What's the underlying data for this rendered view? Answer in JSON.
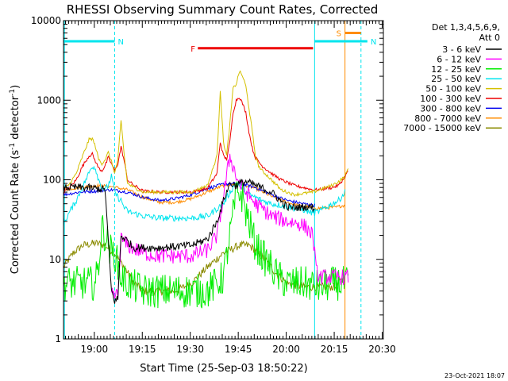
{
  "chart_data": {
    "type": "line",
    "title": "RHESSI Observing Summary Count Rates, Corrected",
    "xlabel": "Start Time (25-Sep-03 18:50:22)",
    "ylabel": "Corrected Count Rate (s",
    "ylabel_sup1": "-1",
    "ylabel_mid": " detector",
    "ylabel_sup2": "-1",
    "ylabel_end": ")",
    "yscale": "log",
    "ylim": [
      1,
      10000
    ],
    "xlim_min": [
      0,
      100
    ],
    "x_unit": "minutes since 18:50:22",
    "x_tick_labels": [
      {
        "label": "19:00",
        "t": 9.63
      },
      {
        "label": "19:15",
        "t": 24.63
      },
      {
        "label": "19:30",
        "t": 39.63
      },
      {
        "label": "19:45",
        "t": 54.63
      },
      {
        "label": "20:00",
        "t": 69.63
      },
      {
        "label": "20:15",
        "t": 84.63
      },
      {
        "label": "20:30",
        "t": 99.63
      }
    ],
    "y_tick_labels": [
      "1",
      "10",
      "100",
      "1000",
      "10000"
    ],
    "legend_header": [
      "Det 1,3,4,5,6,9,",
      "Att 0"
    ],
    "legend_position": "top-right",
    "footer_date": "23-Oct-2021 18:07",
    "flags": [
      {
        "label": "N",
        "color": "#00e5ee",
        "t_start": 0,
        "t_end": 16,
        "level": 5500
      },
      {
        "label": "F",
        "color": "#ee0000",
        "t_start": 42,
        "t_end": 78,
        "level": 4500
      },
      {
        "label": "N",
        "color": "#00e5ee",
        "t_start": 78.5,
        "t_end": 95,
        "level": 5500
      },
      {
        "label": "S",
        "color": "#ff8c00",
        "t_start": 88,
        "t_end": 93,
        "level": 7000
      }
    ],
    "vlines": [
      {
        "t": 16,
        "color": "#00e5ee",
        "dashed": true
      },
      {
        "t": 78.5,
        "color": "#00e5ee",
        "dashed": false
      },
      {
        "t": 88,
        "color": "#ff8c00",
        "dashed": false
      },
      {
        "t": 93,
        "color": "#00e5ee",
        "dashed": true
      },
      {
        "t": 0.3,
        "color": "#00e5ee",
        "dashed": false
      }
    ],
    "series": [
      {
        "name": "3 - 6 keV",
        "color": "#000000",
        "noise": 0.05,
        "t_end": 78.5,
        "t": [
          0,
          5,
          10,
          13,
          15,
          16,
          17,
          18,
          20,
          22,
          30,
          40,
          45,
          48,
          50,
          52,
          54,
          55,
          57,
          60,
          65,
          70,
          74,
          76,
          78
        ],
        "values": [
          80,
          80,
          78,
          75,
          4,
          3,
          3.2,
          20,
          17,
          14,
          14,
          15,
          18,
          30,
          55,
          90,
          85,
          90,
          95,
          85,
          70,
          45,
          45,
          46,
          45
        ]
      },
      {
        "name": "6 - 12 keV",
        "color": "#ff00ff",
        "noise": 0.1,
        "t_end": 89,
        "t": [
          15,
          17,
          18,
          20,
          25,
          30,
          35,
          40,
          45,
          48,
          50,
          52,
          53,
          54,
          55,
          57,
          60,
          65,
          70,
          74,
          76,
          78,
          79,
          80,
          82,
          84,
          86,
          88
        ],
        "values": [
          3.5,
          3.5,
          18,
          15,
          12,
          11,
          11,
          11,
          13,
          20,
          60,
          200,
          150,
          110,
          90,
          70,
          50,
          35,
          30,
          28,
          25,
          20,
          7,
          6,
          6,
          6,
          6,
          6
        ]
      },
      {
        "name": "12 - 25 keV",
        "color": "#00ee00",
        "noise": 0.22,
        "t_end": 89,
        "t": [
          0,
          5,
          10,
          11,
          12,
          13,
          15,
          16,
          18,
          20,
          25,
          35,
          45,
          48,
          50,
          52,
          54,
          55,
          56,
          57,
          58,
          60,
          63,
          65,
          67,
          70,
          75,
          80,
          85,
          88
        ],
        "values": [
          5,
          5,
          5,
          9,
          25,
          20,
          12,
          12,
          6,
          5,
          4,
          4,
          4,
          5,
          6,
          20,
          65,
          70,
          60,
          40,
          30,
          15,
          10,
          8,
          6,
          5,
          5,
          4.5,
          5,
          5
        ]
      },
      {
        "name": "25 - 50 keV",
        "color": "#00e5ee",
        "noise": 0.04,
        "t_end": 88,
        "t": [
          0,
          2,
          4,
          7,
          9,
          10,
          11,
          12,
          13,
          14,
          15,
          16,
          17,
          18,
          19,
          20,
          22,
          25,
          30,
          35,
          40,
          45,
          50,
          52,
          54,
          55,
          56,
          57,
          58,
          60,
          62,
          65,
          68,
          70,
          72,
          75,
          78,
          80,
          82,
          84,
          86,
          88
        ],
        "values": [
          28,
          40,
          55,
          100,
          150,
          140,
          100,
          80,
          75,
          85,
          110,
          70,
          60,
          55,
          45,
          40,
          38,
          35,
          33,
          33,
          33,
          35,
          50,
          70,
          90,
          85,
          80,
          70,
          65,
          60,
          55,
          50,
          48,
          46,
          44,
          42,
          38,
          40,
          45,
          50,
          55,
          70
        ]
      },
      {
        "name": "50 - 100 keV",
        "color": "#d4c000",
        "noise": 0.02,
        "t_end": 89,
        "t": [
          0,
          2,
          4,
          6,
          8,
          9,
          10,
          11,
          12,
          13,
          14,
          15,
          16,
          17,
          18,
          19,
          20,
          22,
          25,
          30,
          40,
          45,
          48,
          49,
          50,
          51,
          52,
          53,
          54,
          55,
          56,
          57,
          58,
          59,
          60,
          61,
          62,
          63,
          64,
          65,
          68,
          72,
          78,
          80,
          82,
          84,
          86,
          88,
          89
        ],
        "values": [
          75,
          90,
          120,
          200,
          320,
          330,
          260,
          180,
          160,
          180,
          220,
          170,
          120,
          180,
          550,
          200,
          90,
          80,
          70,
          70,
          70,
          85,
          200,
          1350,
          300,
          200,
          500,
          1400,
          1600,
          2300,
          2000,
          1500,
          800,
          400,
          200,
          150,
          130,
          120,
          110,
          100,
          75,
          65,
          70,
          75,
          80,
          85,
          95,
          110,
          140
        ]
      },
      {
        "name": "100 - 300 keV",
        "color": "#ee0000",
        "noise": 0.02,
        "t_end": 89,
        "t": [
          0,
          2,
          4,
          6,
          8,
          9,
          10,
          11,
          12,
          13,
          14,
          15,
          16,
          17,
          18,
          19,
          20,
          22,
          25,
          30,
          40,
          45,
          48,
          49,
          50,
          51,
          52,
          53,
          54,
          55,
          56,
          57,
          58,
          59,
          60,
          61,
          62,
          63,
          64,
          65,
          68,
          72,
          78,
          80,
          82,
          84,
          86,
          88,
          89
        ],
        "values": [
          70,
          80,
          100,
          150,
          200,
          210,
          170,
          140,
          130,
          150,
          190,
          160,
          130,
          160,
          260,
          170,
          100,
          85,
          72,
          70,
          70,
          78,
          120,
          300,
          200,
          180,
          300,
          700,
          1000,
          1100,
          900,
          700,
          400,
          250,
          190,
          170,
          150,
          140,
          130,
          120,
          100,
          85,
          75,
          75,
          78,
          80,
          85,
          110,
          130
        ]
      },
      {
        "name": "300 - 800 keV",
        "color": "#0000ee",
        "noise": 0.02,
        "t_end": 78.5,
        "t": [
          0,
          5,
          10,
          15,
          20,
          25,
          30,
          35,
          40,
          45,
          50,
          55,
          60,
          65,
          70,
          75,
          78
        ],
        "values": [
          65,
          70,
          72,
          75,
          70,
          60,
          55,
          58,
          65,
          78,
          88,
          90,
          80,
          65,
          55,
          50,
          48
        ]
      },
      {
        "name": "800 - 7000 keV",
        "color": "#ff8c00",
        "noise": 0.02,
        "t_end": 88,
        "t": [
          0,
          5,
          10,
          15,
          20,
          25,
          30,
          35,
          40,
          45,
          50,
          55,
          60,
          65,
          70,
          75,
          80,
          85,
          88
        ],
        "values": [
          75,
          80,
          85,
          82,
          75,
          60,
          52,
          52,
          58,
          70,
          85,
          90,
          78,
          62,
          52,
          46,
          44,
          45,
          48
        ]
      },
      {
        "name": "7000 - 15000 keV",
        "color": "#8b8b00",
        "noise": 0.05,
        "t_end": 88,
        "t": [
          0,
          3,
          6,
          10,
          13,
          16,
          19,
          22,
          25,
          30,
          35,
          40,
          45,
          50,
          55,
          58,
          60,
          63,
          66,
          70,
          75,
          80,
          85,
          88
        ],
        "values": [
          8,
          12,
          15,
          16,
          15,
          12,
          8,
          5,
          4,
          4,
          4,
          5,
          8,
          12,
          15,
          15,
          13,
          10,
          7,
          5,
          4.5,
          4.5,
          4.5,
          6
        ]
      }
    ]
  }
}
